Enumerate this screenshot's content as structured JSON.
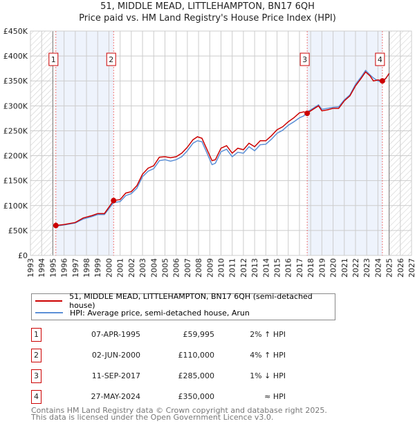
{
  "chart_data": {
    "type": "line",
    "title": "51, MIDDLE MEAD, LITTLEHAMPTON, BN17 6QH",
    "subtitle": "Price paid vs. HM Land Registry's House Price Index (HPI)",
    "xlim": [
      1993,
      2027
    ],
    "ylim": [
      0,
      450000
    ],
    "x_ticks": [
      "1993",
      "1994",
      "1995",
      "1996",
      "1997",
      "1998",
      "1999",
      "2000",
      "2001",
      "2002",
      "2003",
      "2004",
      "2005",
      "2006",
      "2007",
      "2008",
      "2009",
      "2010",
      "2011",
      "2012",
      "2013",
      "2014",
      "2015",
      "2016",
      "2017",
      "2018",
      "2019",
      "2020",
      "2021",
      "2022",
      "2023",
      "2024",
      "2025",
      "2026",
      "2027"
    ],
    "y_ticks": [
      {
        "v": 0,
        "l": "£0"
      },
      {
        "v": 50000,
        "l": "£50K"
      },
      {
        "v": 100000,
        "l": "£100K"
      },
      {
        "v": 150000,
        "l": "£150K"
      },
      {
        "v": 200000,
        "l": "£200K"
      },
      {
        "v": 250000,
        "l": "£250K"
      },
      {
        "v": 300000,
        "l": "£300K"
      },
      {
        "v": 350000,
        "l": "£350K"
      },
      {
        "v": 400000,
        "l": "£400K"
      },
      {
        "v": 450000,
        "l": "£450K"
      }
    ],
    "grid": true,
    "data_start": 1995,
    "data_end": 2025,
    "shaded": [
      [
        1995.27,
        2000.42
      ],
      [
        2017.69,
        2024.4
      ]
    ],
    "series": [
      {
        "name": "51, MIDDLE MEAD, LITTLEHAMPTON, BN17 6QH (semi-detached house)",
        "color": "#cc0000",
        "x": [
          1995.27,
          1996,
          1997,
          1997.7,
          1998.5,
          1999,
          1999.6,
          2000.42,
          2001,
          2001.5,
          2002,
          2002.5,
          2003,
          2003.5,
          2004,
          2004.5,
          2005,
          2005.5,
          2006,
          2006.5,
          2007,
          2007.5,
          2007.9,
          2008.3,
          2008.7,
          2009.2,
          2009.5,
          2010,
          2010.5,
          2011,
          2011.5,
          2012,
          2012.5,
          2013,
          2013.5,
          2014,
          2014.5,
          2015,
          2015.5,
          2016,
          2016.5,
          2017,
          2017.4,
          2017.69,
          2018,
          2018.7,
          2019,
          2019.5,
          2020,
          2020.5,
          2021,
          2021.5,
          2022,
          2022.5,
          2022.9,
          2023.3,
          2023.6,
          2024,
          2024.4,
          2024.7,
          2025
        ],
        "y": [
          59995,
          62000,
          66000,
          75000,
          80000,
          84000,
          84000,
          110000,
          112000,
          125000,
          128000,
          140000,
          163000,
          175000,
          180000,
          197000,
          198000,
          196000,
          198000,
          205000,
          217000,
          232000,
          238000,
          235000,
          215000,
          190000,
          192000,
          215000,
          220000,
          205000,
          215000,
          212000,
          225000,
          218000,
          230000,
          230000,
          240000,
          252000,
          258000,
          268000,
          276000,
          286000,
          288000,
          285000,
          290000,
          300000,
          290000,
          292000,
          295000,
          295000,
          310000,
          320000,
          340000,
          355000,
          368000,
          360000,
          350000,
          352000,
          350000,
          355000,
          365000
        ]
      },
      {
        "name": "HPI: Average price, semi-detached house, Arun",
        "color": "#5b8fd6",
        "x": [
          1995.27,
          1996,
          1997,
          1997.7,
          1998.5,
          1999,
          1999.6,
          2000.42,
          2001,
          2001.5,
          2002,
          2002.5,
          2003,
          2003.5,
          2004,
          2004.5,
          2005,
          2005.5,
          2006,
          2006.5,
          2007,
          2007.5,
          2007.9,
          2008.3,
          2008.7,
          2009.2,
          2009.5,
          2010,
          2010.5,
          2011,
          2011.5,
          2012,
          2012.5,
          2013,
          2013.5,
          2014,
          2014.5,
          2015,
          2015.5,
          2016,
          2016.5,
          2017,
          2017.4,
          2017.69,
          2018,
          2018.7,
          2019,
          2019.5,
          2020,
          2020.5,
          2021,
          2021.5,
          2022,
          2022.5,
          2022.9,
          2023.3,
          2023.6,
          2024,
          2024.4,
          2024.7,
          2025
        ],
        "y": [
          59000,
          61000,
          65000,
          73000,
          78000,
          82000,
          82000,
          106000,
          108000,
          120000,
          124000,
          135000,
          158000,
          169000,
          174000,
          190000,
          192000,
          189000,
          192000,
          198000,
          210000,
          225000,
          230000,
          228000,
          208000,
          182000,
          185000,
          208000,
          213000,
          198000,
          207000,
          205000,
          218000,
          210000,
          222000,
          223000,
          233000,
          245000,
          251000,
          261000,
          268000,
          276000,
          280000,
          288000,
          292000,
          302000,
          293000,
          295000,
          297000,
          298000,
          312000,
          322000,
          343000,
          358000,
          371000,
          362000,
          356000,
          350000,
          347000,
          355000,
          364000
        ]
      }
    ],
    "sales": [
      {
        "n": "1",
        "x": 1995.27,
        "y": 59995,
        "date": "07-APR-1995",
        "price": "£59,995",
        "hpi": "2% ↑ HPI"
      },
      {
        "n": "2",
        "x": 2000.42,
        "y": 110000,
        "date": "02-JUN-2000",
        "price": "£110,000",
        "hpi": "4% ↑ HPI"
      },
      {
        "n": "3",
        "x": 2017.69,
        "y": 285000,
        "date": "11-SEP-2017",
        "price": "£285,000",
        "hpi": "1% ↓ HPI"
      },
      {
        "n": "4",
        "x": 2024.4,
        "y": 350000,
        "date": "27-MAY-2024",
        "price": "£350,000",
        "hpi": "≈ HPI"
      }
    ]
  },
  "footer": {
    "line1": "Contains HM Land Registry data © Crown copyright and database right 2025.",
    "line2": "This data is licensed under the Open Government Licence v3.0."
  }
}
